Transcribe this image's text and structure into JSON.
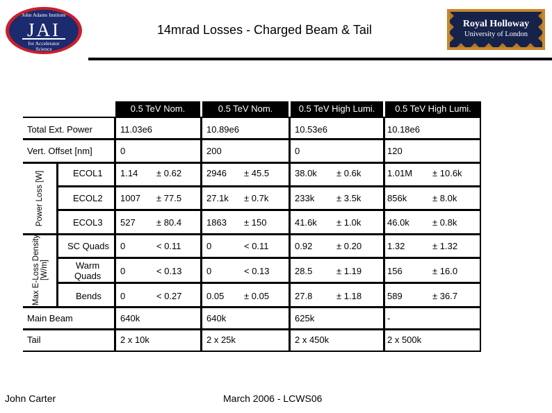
{
  "slide": {
    "title": "14mrad Losses - Charged Beam & Tail",
    "author": "John Carter",
    "date_event": "March 2006 - LCWS06"
  },
  "logos": {
    "left": {
      "line1": "John Adams Institute",
      "line2": "JAI",
      "line3": "for Accelerator",
      "line4": "Science",
      "ring_color": "#c8202a",
      "fill_color": "#1c2a6e"
    },
    "right": {
      "line1": "Royal Holloway",
      "line2": "University of London",
      "fill_color": "#16224a",
      "pattern_color": "#c8892a"
    }
  },
  "table": {
    "columns": [
      "0.5 TeV Nom.",
      "0.5 TeV Nom.",
      "0.5 TeV High Lumi.",
      "0.5 TeV High Lumi."
    ],
    "group_labels": {
      "power_loss": "Power Loss [W]",
      "max_eloss": "Max E-Loss Density [W/m]"
    },
    "rows": [
      {
        "label": "Total Ext. Power",
        "cells": [
          {
            "v": "11.03e6"
          },
          {
            "v": "10.89e6"
          },
          {
            "v": "10.53e6"
          },
          {
            "v": "10.18e6"
          }
        ]
      },
      {
        "label": "Vert. Offset [nm]",
        "cells": [
          {
            "v": "0"
          },
          {
            "v": "200"
          },
          {
            "v": "0"
          },
          {
            "v": "120"
          }
        ]
      },
      {
        "label": "ECOL1",
        "cells": [
          {
            "v": "1.14",
            "e": "± 0.62"
          },
          {
            "v": "2946",
            "e": "± 45.5"
          },
          {
            "v": "38.0k",
            "e": "± 0.6k"
          },
          {
            "v": "1.01M",
            "e": "± 10.6k"
          }
        ]
      },
      {
        "label": "ECOL2",
        "cells": [
          {
            "v": "1007",
            "e": "± 77.5"
          },
          {
            "v": "27.1k",
            "e": "± 0.7k"
          },
          {
            "v": "233k",
            "e": "± 3.5k"
          },
          {
            "v": "856k",
            "e": "± 8.0k"
          }
        ]
      },
      {
        "label": "ECOL3",
        "cells": [
          {
            "v": "527",
            "e": "± 80.4"
          },
          {
            "v": "1863",
            "e": "± 150"
          },
          {
            "v": "41.6k",
            "e": "± 1.0k"
          },
          {
            "v": "46.0k",
            "e": "± 0.8k"
          }
        ]
      },
      {
        "label": "SC Quads",
        "cells": [
          {
            "v": "0",
            "e": "< 0.11"
          },
          {
            "v": "0",
            "e": "< 0.11"
          },
          {
            "v": "0.92",
            "e": "± 0.20"
          },
          {
            "v": "1.32",
            "e": "± 1.32"
          }
        ]
      },
      {
        "label": "Warm Quads",
        "label2": "Quads",
        "label1": "Warm",
        "cells": [
          {
            "v": "0",
            "e": "< 0.13"
          },
          {
            "v": "0",
            "e": "< 0.13"
          },
          {
            "v": "28.5",
            "e": "± 1.19"
          },
          {
            "v": "156",
            "e": "± 16.0"
          }
        ]
      },
      {
        "label": "Bends",
        "cells": [
          {
            "v": "0",
            "e": "< 0.27"
          },
          {
            "v": "0.05",
            "e": "± 0.05"
          },
          {
            "v": "27.8",
            "e": "± 1.18"
          },
          {
            "v": "589",
            "e": "± 36.7"
          }
        ]
      },
      {
        "label": "Main Beam",
        "cells": [
          {
            "v": "640k"
          },
          {
            "v": "640k"
          },
          {
            "v": "625k"
          },
          {
            "v": "-"
          }
        ]
      },
      {
        "label": "Tail",
        "cells": [
          {
            "v": "2 x 10k"
          },
          {
            "v": "2 x 25k"
          },
          {
            "v": "2 x 450k"
          },
          {
            "v": "2 x 500k"
          }
        ]
      }
    ]
  }
}
